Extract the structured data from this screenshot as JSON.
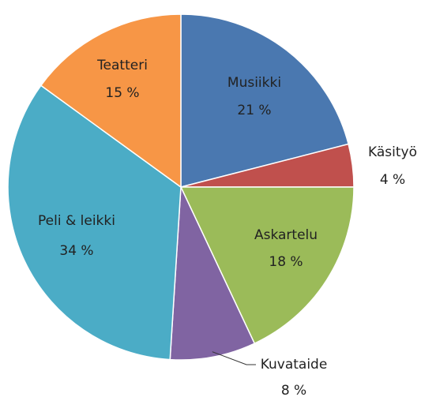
{
  "chart_data": {
    "type": "pie",
    "categories": [
      "Musiikki",
      "Käsityö",
      "Askartelu",
      "Kuvataide",
      "Peli & leikki",
      "Teatteri"
    ],
    "values": [
      21,
      4,
      18,
      8,
      34,
      15
    ],
    "value_labels": [
      "21 %",
      "4 %",
      "18 %",
      "8 %",
      "34 %",
      "15 %"
    ],
    "colors": [
      "#4a78b0",
      "#c0504d",
      "#9bbb59",
      "#8064a2",
      "#4bacc6",
      "#f79646"
    ],
    "start_angle": 0,
    "direction": "clockwise"
  }
}
